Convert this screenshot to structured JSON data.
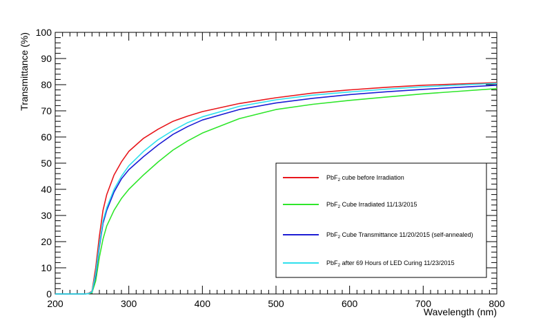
{
  "chart_data": {
    "type": "line",
    "xlabel": "Wavelength (nm)",
    "ylabel": "Transmittance (%)",
    "xlim": [
      200,
      800
    ],
    "ylim": [
      0,
      100
    ],
    "x_ticks": [
      "200",
      "300",
      "400",
      "500",
      "600",
      "700",
      "800"
    ],
    "y_ticks": [
      "0",
      "10",
      "20",
      "30",
      "40",
      "50",
      "60",
      "70",
      "80",
      "90",
      "100"
    ],
    "grid": false,
    "legend_position": "lower-right",
    "series": [
      {
        "name_main": "PbF",
        "name_sub": "2",
        "name_rest": " cube before Irradiation",
        "color": "#e8161b",
        "x": [
          200,
          240,
          245,
          250,
          255,
          260,
          265,
          270,
          280,
          290,
          300,
          320,
          340,
          360,
          380,
          400,
          450,
          500,
          550,
          600,
          650,
          700,
          750,
          800
        ],
        "y": [
          0,
          0,
          0.2,
          1,
          10,
          22,
          32,
          38,
          45.5,
          50.5,
          54.5,
          59.5,
          63,
          66,
          68,
          69.7,
          72.8,
          75,
          76.8,
          78,
          79,
          79.8,
          80.3,
          80.8
        ]
      },
      {
        "name_main": "PbF",
        "name_sub": "2",
        "name_rest": " Cube Irradiated 11/13/2015",
        "color": "#2ee62a",
        "x": [
          200,
          240,
          245,
          250,
          255,
          260,
          265,
          270,
          280,
          290,
          300,
          320,
          340,
          360,
          380,
          400,
          450,
          500,
          550,
          600,
          650,
          700,
          750,
          800
        ],
        "y": [
          0,
          0,
          0.1,
          0.5,
          5,
          14,
          21,
          26,
          32,
          36.5,
          40,
          45.5,
          50.5,
          55,
          58.5,
          61.5,
          67,
          70.5,
          72.5,
          74,
          75.3,
          76.5,
          77.5,
          78.5
        ]
      },
      {
        "name_main": "PbF",
        "name_sub": "2",
        "name_rest": " Cube Transmittance 11/20/2015 (self-annealed)",
        "color": "#1b1bd4",
        "x": [
          200,
          240,
          245,
          250,
          255,
          260,
          265,
          270,
          280,
          290,
          300,
          320,
          340,
          360,
          380,
          400,
          450,
          500,
          550,
          600,
          650,
          700,
          750,
          800
        ],
        "y": [
          0,
          0,
          0.1,
          0.8,
          7,
          18,
          27,
          32,
          39,
          44,
          47.5,
          52.5,
          57,
          61,
          64,
          66.5,
          70.5,
          73,
          74.8,
          76.2,
          77.3,
          78.2,
          79,
          79.8
        ]
      },
      {
        "name_main": "PbF",
        "name_sub": "2",
        "name_rest": " after 69 Hours of LED Curing 11/23/2015",
        "color": "#2de0ec",
        "x": [
          200,
          240,
          245,
          250,
          255,
          260,
          265,
          270,
          280,
          290,
          300,
          320,
          340,
          360,
          380,
          400,
          450,
          500,
          550,
          600,
          650,
          700,
          750,
          800
        ],
        "y": [
          0,
          0,
          0.1,
          0.8,
          8,
          19,
          28,
          33,
          40,
          45,
          49,
          54.5,
          59,
          62.5,
          65.5,
          67.7,
          71.7,
          74.2,
          76,
          77.2,
          78.3,
          79.2,
          79.9,
          80.5
        ]
      }
    ]
  }
}
